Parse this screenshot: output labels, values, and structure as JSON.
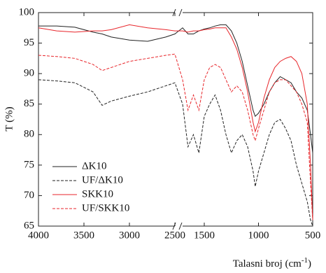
{
  "chart_data": {
    "type": "line",
    "y_label": "T (%)",
    "x_label": {
      "text": "Talasni broj (cm",
      "sup": "-1",
      "tail": ")"
    },
    "xlim": [
      4000,
      500
    ],
    "x_break": [
      2500,
      1700
    ],
    "xticks": [
      4000,
      3500,
      3000,
      2500,
      1500,
      1000,
      500
    ],
    "ylim": [
      65,
      100
    ],
    "yticks": [
      65,
      70,
      75,
      80,
      85,
      90,
      95,
      100
    ],
    "legend": "lower left",
    "x": [
      4000,
      3800,
      3600,
      3400,
      3300,
      3200,
      3000,
      2800,
      2600,
      2500,
      1700,
      1650,
      1600,
      1550,
      1500,
      1450,
      1400,
      1350,
      1300,
      1250,
      1200,
      1150,
      1100,
      1050,
      1030,
      1000,
      950,
      900,
      850,
      800,
      750,
      700,
      650,
      600,
      550,
      520,
      500
    ],
    "series": [
      {
        "name": "ΔK10",
        "color": "#222222",
        "linestyle": "solid",
        "values": [
          97.8,
          97.8,
          97.6,
          96.8,
          96.5,
          96,
          95.5,
          95.3,
          96,
          96.5,
          97.5,
          96.5,
          96.5,
          97,
          97.3,
          97.5,
          97.8,
          98,
          98,
          97,
          95,
          92,
          88,
          84,
          83,
          83.5,
          85,
          87,
          88.5,
          89.5,
          89,
          88.5,
          87,
          86,
          84,
          80,
          77
        ]
      },
      {
        "name": "UF/ΔK10",
        "color": "#222222",
        "linestyle": "dashed",
        "values": [
          89,
          88.8,
          88.5,
          87,
          84.8,
          85.5,
          86.3,
          87,
          88,
          88.5,
          85,
          78,
          80,
          77,
          83,
          85,
          86.5,
          84,
          80,
          77,
          79,
          80,
          78,
          74,
          71.5,
          74,
          77,
          80,
          82,
          82.5,
          81,
          79,
          75,
          72,
          69,
          66,
          65
        ]
      },
      {
        "name": "SKK10",
        "color": "#e8262b",
        "linestyle": "solid",
        "values": [
          97.5,
          97,
          96.8,
          97,
          97,
          97.2,
          98,
          97.5,
          97.2,
          97,
          97,
          96.8,
          97,
          97,
          97.2,
          97.3,
          97.5,
          97.5,
          97.5,
          96,
          94,
          91,
          87,
          82,
          80.5,
          82,
          86,
          89,
          91,
          92,
          92.5,
          92.8,
          92,
          90,
          85,
          75,
          66
        ]
      },
      {
        "name": "UF/SKK10",
        "color": "#e8262b",
        "linestyle": "dashed",
        "values": [
          93,
          92.8,
          92.5,
          91.5,
          90.5,
          91,
          92,
          92.5,
          93,
          93.2,
          89,
          84,
          86.5,
          84,
          89,
          91,
          91.5,
          91,
          89,
          87,
          88,
          87,
          84,
          80,
          79,
          81,
          84,
          87,
          88.5,
          89,
          89,
          88,
          87,
          85,
          82,
          72,
          66
        ]
      }
    ]
  }
}
